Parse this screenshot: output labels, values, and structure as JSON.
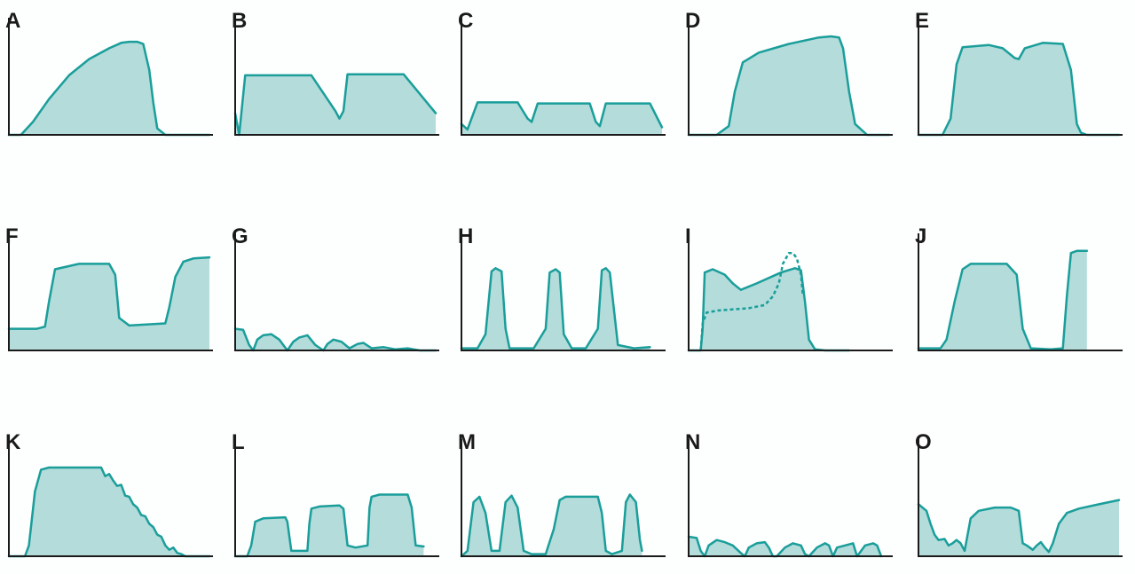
{
  "colors": {
    "stroke": "#1a9e9a",
    "fill": "#b3dcdb",
    "axis": "#1a1a1a",
    "letter": "#1a1a1a"
  },
  "chart_data": [
    {
      "type": "area",
      "letter": "A",
      "dashed": null,
      "x": [
        0,
        0.06,
        0.12,
        0.2,
        0.3,
        0.4,
        0.5,
        0.56,
        0.6,
        0.64,
        0.67,
        0.7,
        0.72,
        0.74,
        0.78,
        1
      ],
      "y": [
        0,
        0,
        0.12,
        0.33,
        0.55,
        0.7,
        0.8,
        0.85,
        0.86,
        0.86,
        0.84,
        0.6,
        0.3,
        0.06,
        0,
        0
      ]
    },
    {
      "type": "area",
      "letter": "B",
      "dashed": null,
      "x": [
        0,
        0.02,
        0.05,
        0.38,
        0.5,
        0.52,
        0.54,
        0.56,
        0.84,
        1
      ],
      "y": [
        0.2,
        0,
        0.55,
        0.55,
        0.22,
        0.15,
        0.22,
        0.56,
        0.56,
        0.2
      ]
    },
    {
      "type": "area",
      "letter": "C",
      "dashed": null,
      "x": [
        0,
        0.03,
        0.08,
        0.28,
        0.33,
        0.35,
        0.38,
        0.64,
        0.67,
        0.69,
        0.72,
        0.94,
        1
      ],
      "y": [
        0.1,
        0.05,
        0.3,
        0.3,
        0.15,
        0.12,
        0.29,
        0.29,
        0.12,
        0.08,
        0.29,
        0.29,
        0.07
      ]
    },
    {
      "type": "area",
      "letter": "D",
      "dashed": null,
      "x": [
        0,
        0.14,
        0.2,
        0.23,
        0.27,
        0.35,
        0.5,
        0.65,
        0.71,
        0.75,
        0.77,
        0.8,
        0.83,
        0.89,
        1
      ],
      "y": [
        0,
        0,
        0.08,
        0.4,
        0.67,
        0.76,
        0.84,
        0.9,
        0.91,
        0.9,
        0.8,
        0.4,
        0.1,
        0,
        0
      ]
    },
    {
      "type": "area",
      "letter": "E",
      "dashed": null,
      "x": [
        0,
        0.12,
        0.16,
        0.19,
        0.22,
        0.35,
        0.42,
        0.48,
        0.5,
        0.53,
        0.62,
        0.72,
        0.76,
        0.79,
        0.81,
        0.84,
        1
      ],
      "y": [
        0,
        0,
        0.15,
        0.65,
        0.81,
        0.83,
        0.8,
        0.71,
        0.7,
        0.8,
        0.85,
        0.84,
        0.6,
        0.1,
        0.02,
        0,
        0
      ]
    },
    {
      "type": "area",
      "letter": "F",
      "dashed": null,
      "x": [
        0,
        0.14,
        0.18,
        0.2,
        0.23,
        0.35,
        0.5,
        0.53,
        0.55,
        0.6,
        0.78,
        0.8,
        0.83,
        0.87,
        0.92,
        1
      ],
      "y": [
        0.2,
        0.2,
        0.22,
        0.45,
        0.75,
        0.8,
        0.8,
        0.7,
        0.3,
        0.23,
        0.25,
        0.4,
        0.68,
        0.82,
        0.85,
        0.86
      ]
    },
    {
      "type": "area",
      "letter": "G",
      "dashed": null,
      "x": [
        0,
        0.04,
        0.07,
        0.09,
        0.11,
        0.14,
        0.18,
        0.22,
        0.26,
        0.29,
        0.32,
        0.36,
        0.4,
        0.44,
        0.46,
        0.49,
        0.53,
        0.57,
        0.61,
        0.64,
        0.68,
        0.74,
        0.8,
        0.86,
        0.92,
        1
      ],
      "y": [
        0.2,
        0.19,
        0.05,
        0,
        0.1,
        0.14,
        0.15,
        0.1,
        0,
        0.08,
        0.12,
        0.14,
        0.05,
        0,
        0.06,
        0.1,
        0.08,
        0.02,
        0.06,
        0.07,
        0.02,
        0.03,
        0.01,
        0.02,
        0,
        0
      ]
    },
    {
      "type": "area",
      "letter": "H",
      "dashed": null,
      "x": [
        0,
        0.08,
        0.12,
        0.15,
        0.17,
        0.2,
        0.22,
        0.24,
        0.28,
        0.36,
        0.42,
        0.44,
        0.47,
        0.49,
        0.51,
        0.55,
        0.62,
        0.68,
        0.7,
        0.72,
        0.74,
        0.78,
        0.86,
        0.94
      ],
      "y": [
        0.02,
        0.02,
        0.15,
        0.73,
        0.76,
        0.73,
        0.2,
        0.02,
        0.02,
        0.02,
        0.2,
        0.72,
        0.75,
        0.72,
        0.15,
        0.02,
        0.02,
        0.2,
        0.74,
        0.76,
        0.72,
        0.05,
        0.02,
        0.03
      ]
    },
    {
      "type": "area",
      "letter": "I",
      "x": [
        0,
        0.06,
        0.07,
        0.08,
        0.12,
        0.18,
        0.22,
        0.26,
        0.34,
        0.46,
        0.53,
        0.56,
        0.58,
        0.6,
        0.63,
        0.68,
        0.8
      ],
      "y": [
        0,
        0,
        0.2,
        0.72,
        0.75,
        0.7,
        0.62,
        0.56,
        0.62,
        0.72,
        0.76,
        0.74,
        0.45,
        0.1,
        0.01,
        0,
        0
      ],
      "dashed": {
        "x": [
          0.06,
          0.07,
          0.09,
          0.15,
          0.3,
          0.38,
          0.42,
          0.45,
          0.47,
          0.5,
          0.52,
          0.54,
          0.56,
          0.57
        ],
        "y": [
          0,
          0.25,
          0.35,
          0.37,
          0.39,
          0.42,
          0.5,
          0.62,
          0.8,
          0.9,
          0.9,
          0.85,
          0.7,
          0.5
        ]
      }
    },
    {
      "type": "area",
      "letter": "J",
      "dashed": null,
      "x": [
        0,
        0.11,
        0.14,
        0.18,
        0.22,
        0.26,
        0.44,
        0.49,
        0.52,
        0.56,
        0.66,
        0.72,
        0.74,
        0.76,
        0.79,
        0.84
      ],
      "y": [
        0.02,
        0.02,
        0.1,
        0.45,
        0.75,
        0.8,
        0.8,
        0.7,
        0.2,
        0.02,
        0.01,
        0.02,
        0.5,
        0.9,
        0.92,
        0.92
      ]
    },
    {
      "type": "area",
      "letter": "K",
      "dashed": null,
      "x": [
        0,
        0.08,
        0.1,
        0.13,
        0.16,
        0.2,
        0.46,
        0.48,
        0.5,
        0.52,
        0.54,
        0.56,
        0.58,
        0.6,
        0.62,
        0.64,
        0.66,
        0.68,
        0.7,
        0.72,
        0.74,
        0.76,
        0.78,
        0.8,
        0.82,
        0.84,
        0.86,
        0.88,
        1
      ],
      "y": [
        0,
        0,
        0.1,
        0.6,
        0.8,
        0.82,
        0.82,
        0.74,
        0.76,
        0.7,
        0.65,
        0.66,
        0.56,
        0.55,
        0.48,
        0.45,
        0.38,
        0.37,
        0.3,
        0.27,
        0.2,
        0.18,
        0.1,
        0.06,
        0.08,
        0.03,
        0.02,
        0,
        0
      ]
    },
    {
      "type": "area",
      "letter": "L",
      "dashed": null,
      "x": [
        0,
        0.06,
        0.08,
        0.1,
        0.14,
        0.25,
        0.26,
        0.28,
        0.32,
        0.36,
        0.37,
        0.38,
        0.42,
        0.52,
        0.54,
        0.56,
        0.6,
        0.66,
        0.67,
        0.68,
        0.72,
        0.86,
        0.88,
        0.9,
        0.94
      ],
      "y": [
        0,
        0,
        0.1,
        0.32,
        0.35,
        0.36,
        0.32,
        0.05,
        0.05,
        0.05,
        0.3,
        0.44,
        0.46,
        0.47,
        0.44,
        0.1,
        0.08,
        0.1,
        0.45,
        0.55,
        0.57,
        0.57,
        0.45,
        0.1,
        0.09
      ]
    },
    {
      "type": "area",
      "letter": "M",
      "dashed": null,
      "x": [
        0,
        0.03,
        0.06,
        0.09,
        0.12,
        0.15,
        0.19,
        0.22,
        0.25,
        0.28,
        0.31,
        0.35,
        0.42,
        0.46,
        0.49,
        0.52,
        0.68,
        0.7,
        0.72,
        0.75,
        0.8,
        0.82,
        0.84,
        0.87,
        0.89,
        0.9
      ],
      "y": [
        0,
        0.05,
        0.5,
        0.55,
        0.4,
        0.05,
        0.05,
        0.5,
        0.56,
        0.45,
        0.05,
        0.02,
        0.02,
        0.25,
        0.52,
        0.55,
        0.55,
        0.4,
        0.05,
        0.02,
        0.05,
        0.5,
        0.57,
        0.5,
        0.15,
        0.05
      ]
    },
    {
      "type": "area",
      "letter": "N",
      "dashed": null,
      "x": [
        0,
        0.04,
        0.06,
        0.08,
        0.1,
        0.14,
        0.18,
        0.22,
        0.26,
        0.28,
        0.3,
        0.34,
        0.38,
        0.4,
        0.42,
        0.44,
        0.48,
        0.52,
        0.56,
        0.58,
        0.6,
        0.64,
        0.68,
        0.7,
        0.72,
        0.74,
        0.78,
        0.82,
        0.84,
        0.86,
        0.88,
        0.92,
        0.94,
        0.96
      ],
      "y": [
        0.18,
        0.17,
        0.05,
        0,
        0.1,
        0.15,
        0.13,
        0.1,
        0.03,
        0,
        0.08,
        0.12,
        0.13,
        0.08,
        0,
        0,
        0.08,
        0.12,
        0.1,
        0.02,
        0,
        0.08,
        0.12,
        0.1,
        0,
        0.08,
        0.1,
        0.12,
        0,
        0.05,
        0.1,
        0.12,
        0.1,
        0
      ]
    },
    {
      "type": "area",
      "letter": "O",
      "dashed": null,
      "x": [
        0,
        0.04,
        0.06,
        0.08,
        0.1,
        0.13,
        0.15,
        0.17,
        0.19,
        0.21,
        0.23,
        0.26,
        0.3,
        0.38,
        0.46,
        0.5,
        0.52,
        0.54,
        0.57,
        0.59,
        0.61,
        0.63,
        0.65,
        0.67,
        0.7,
        0.74,
        0.8,
        0.9,
        1
      ],
      "y": [
        0.48,
        0.42,
        0.3,
        0.2,
        0.15,
        0.16,
        0.1,
        0.12,
        0.15,
        0.12,
        0.05,
        0.35,
        0.42,
        0.45,
        0.45,
        0.42,
        0.12,
        0.1,
        0.06,
        0.1,
        0.13,
        0.08,
        0.04,
        0.12,
        0.3,
        0.4,
        0.44,
        0.48,
        0.52
      ]
    }
  ]
}
